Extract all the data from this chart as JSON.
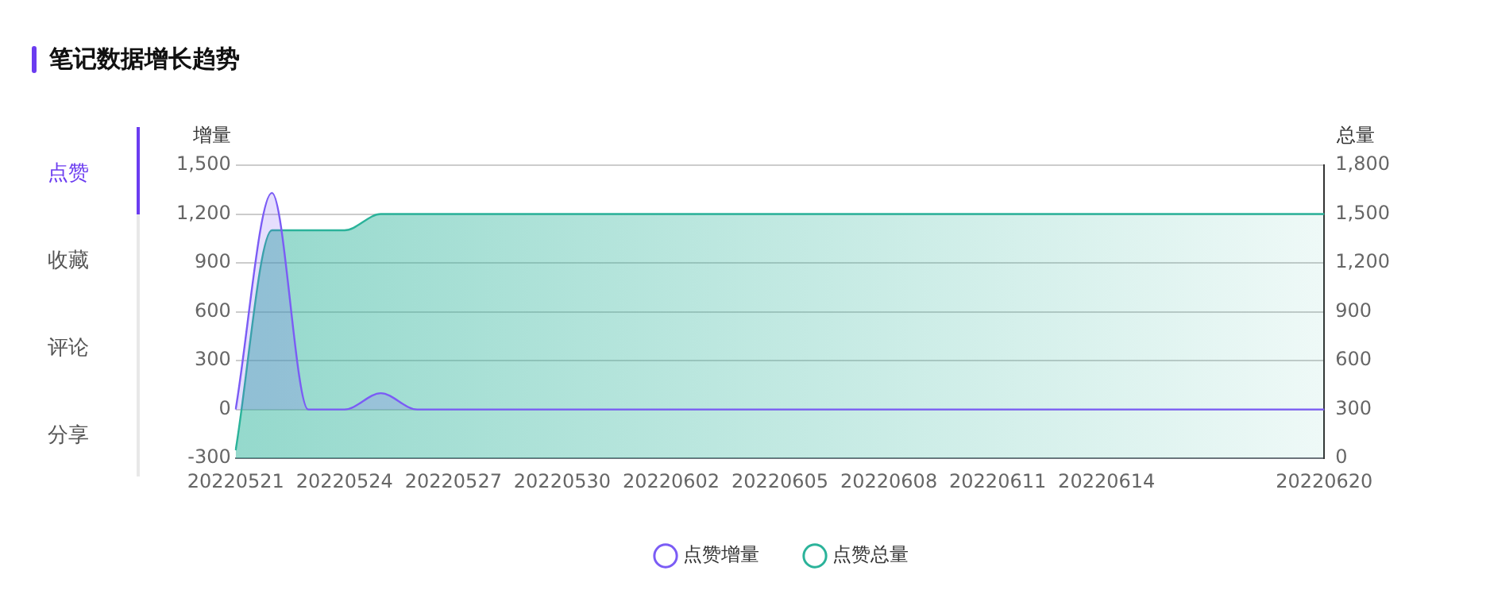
{
  "chart_data": {
    "type": "area",
    "title": "笔记数据增长趋势",
    "annotations": [
      "点赞",
      "收藏",
      "评论",
      "分享"
    ],
    "categories": [
      "20220521",
      null,
      null,
      "20220524",
      null,
      null,
      "20220527",
      null,
      null,
      "20220530",
      null,
      null,
      "20220602",
      null,
      null,
      "20220605",
      null,
      null,
      "20220608",
      null,
      null,
      "20220611",
      null,
      null,
      "20220614",
      null,
      null,
      null,
      null,
      null,
      "20220620"
    ],
    "series": [
      {
        "name": "点赞增量",
        "color": "#7b5cf5",
        "values": [
          0,
          1330,
          0,
          0,
          100,
          0,
          0,
          0,
          0,
          0,
          0,
          0,
          0,
          0,
          0,
          0,
          0,
          0,
          0,
          0,
          0,
          0,
          0,
          0,
          0,
          0,
          0,
          0,
          0,
          0,
          0
        ]
      },
      {
        "name": "点赞总量",
        "color": "#2bb39a",
        "axis": "y2",
        "values": [
          50,
          1400,
          1400,
          1400,
          1500,
          1500,
          1500,
          1500,
          1500,
          1500,
          1500,
          1500,
          1500,
          1500,
          1500,
          1500,
          1500,
          1500,
          1500,
          1500,
          1500,
          1500,
          1500,
          1500,
          1500,
          1500,
          1500,
          1500,
          1500,
          1500,
          1500
        ]
      }
    ],
    "ylabel": "增量",
    "y2label": "总量",
    "ylim": [
      -300,
      1500
    ],
    "yticks": [
      {
        "value": -300,
        "label": "-300"
      },
      0,
      300,
      600,
      900,
      {
        "value": 1200,
        "label": "1,200"
      },
      {
        "value": 1500,
        "label": "1,500"
      }
    ],
    "y2lim": [
      0,
      1800
    ],
    "y2ticks": [
      0,
      300,
      600,
      900,
      {
        "value": 1200,
        "label": "1,200"
      },
      {
        "value": 1500,
        "label": "1,500"
      },
      {
        "value": 1800,
        "label": "1,800"
      }
    ],
    "grid": "y",
    "legend": "bottom",
    "marker": "none"
  }
}
